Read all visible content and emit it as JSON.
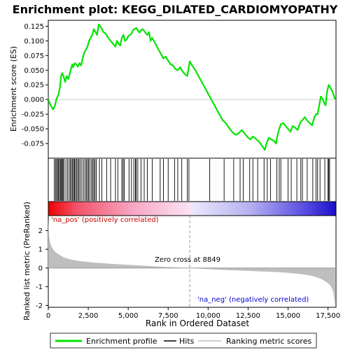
{
  "chart_data": {
    "type": "line",
    "title": "Enrichment plot: KEGG_DILATED_CARDIOMYOPATHY",
    "xlabel": "Rank in Ordered Dataset",
    "colors": {
      "enrichment": "#00e400",
      "hits": "#000000",
      "metric_fill": "#bebebe",
      "zero_line": "#999999",
      "pos_label": "#cc0000",
      "neg_label": "#0000cc"
    },
    "x_ticks": [
      0,
      2500,
      5000,
      7500,
      10000,
      12500,
      15000,
      17500
    ],
    "x_tick_labels": [
      "0",
      "2,500",
      "5,000",
      "7,500",
      "10,000",
      "12,500",
      "15,000",
      "17,500"
    ],
    "xlim": [
      0,
      18000
    ],
    "panels": {
      "es": {
        "ylabel": "Enrichment score (ES)",
        "ylim": [
          -0.1,
          0.135
        ],
        "y_ticks": [
          -0.075,
          -0.05,
          -0.025,
          0.0,
          0.025,
          0.05,
          0.075,
          0.1,
          0.125
        ],
        "y_tick_labels": [
          "-0.075",
          "-0.050",
          "-0.025",
          "0.000",
          "0.025",
          "0.050",
          "0.075",
          "0.100",
          "0.125"
        ]
      },
      "metric": {
        "ylabel": "Ranked list metric (PreRanked)",
        "ylim": [
          -2.1,
          2.8
        ],
        "y_ticks": [
          -2,
          -1,
          0,
          1,
          2
        ],
        "y_tick_labels": [
          "-2",
          "-1",
          "0",
          "1",
          "2"
        ]
      }
    },
    "series": [
      {
        "name": "Enrichment profile",
        "x": [
          0,
          150,
          300,
          420,
          500,
          580,
          650,
          720,
          800,
          870,
          950,
          1050,
          1150,
          1250,
          1350,
          1450,
          1500,
          1560,
          1650,
          1750,
          1850,
          1950,
          2050,
          2150,
          2250,
          2350,
          2450,
          2550,
          2650,
          2750,
          2850,
          2950,
          3050,
          3150,
          3250,
          3350,
          3450,
          3600,
          3750,
          3900,
          4050,
          4200,
          4300,
          4400,
          4500,
          4600,
          4700,
          4800,
          4900,
          5000,
          5100,
          5200,
          5300,
          5400,
          5500,
          5600,
          5700,
          5800,
          5900,
          6000,
          6100,
          6200,
          6300,
          6400,
          6500,
          6600,
          6700,
          6800,
          6900,
          7000,
          7100,
          7200,
          7350,
          7500,
          7650,
          7800,
          7950,
          8100,
          8250,
          8400,
          8550,
          8700,
          8849,
          9000,
          9200,
          9400,
          9600,
          9800,
          10000,
          10100,
          10300,
          10500,
          10700,
          10900,
          11100,
          11300,
          11500,
          11700,
          11900,
          12100,
          12200,
          12350,
          12500,
          12650,
          12800,
          12950,
          13100,
          13250,
          13400,
          13550,
          13650,
          13800,
          13950,
          14100,
          14250,
          14350,
          14450,
          14550,
          14700,
          14850,
          15000,
          15150,
          15300,
          15450,
          15600,
          15750,
          15900,
          16050,
          16200,
          16350,
          16500,
          16650,
          16750,
          16850,
          16950,
          17050,
          17150,
          17250,
          17350,
          17450,
          17550,
          17650,
          17750,
          17850,
          17950
        ],
        "y": [
          0.0,
          -0.01,
          -0.017,
          -0.01,
          0.0,
          0.005,
          0.01,
          0.02,
          0.04,
          0.045,
          0.04,
          0.03,
          0.04,
          0.035,
          0.045,
          0.055,
          0.06,
          0.055,
          0.062,
          0.06,
          0.056,
          0.062,
          0.058,
          0.07,
          0.08,
          0.085,
          0.09,
          0.1,
          0.105,
          0.11,
          0.12,
          0.115,
          0.11,
          0.128,
          0.125,
          0.12,
          0.115,
          0.112,
          0.105,
          0.1,
          0.095,
          0.09,
          0.1,
          0.095,
          0.092,
          0.105,
          0.11,
          0.1,
          0.102,
          0.108,
          0.11,
          0.112,
          0.118,
          0.12,
          0.122,
          0.118,
          0.114,
          0.118,
          0.12,
          0.117,
          0.113,
          0.11,
          0.115,
          0.1,
          0.105,
          0.1,
          0.095,
          0.09,
          0.085,
          0.08,
          0.075,
          0.07,
          0.073,
          0.066,
          0.06,
          0.058,
          0.052,
          0.05,
          0.055,
          0.048,
          0.043,
          0.04,
          0.065,
          0.058,
          0.05,
          0.04,
          0.03,
          0.02,
          0.01,
          0.005,
          -0.005,
          -0.015,
          -0.025,
          -0.035,
          -0.04,
          -0.048,
          -0.055,
          -0.06,
          -0.058,
          -0.052,
          -0.055,
          -0.06,
          -0.065,
          -0.068,
          -0.063,
          -0.066,
          -0.07,
          -0.074,
          -0.08,
          -0.086,
          -0.075,
          -0.065,
          -0.068,
          -0.07,
          -0.075,
          -0.06,
          -0.05,
          -0.042,
          -0.04,
          -0.045,
          -0.05,
          -0.055,
          -0.045,
          -0.048,
          -0.052,
          -0.04,
          -0.035,
          -0.03,
          -0.036,
          -0.04,
          -0.044,
          -0.03,
          -0.025,
          -0.025,
          -0.01,
          0.005,
          0.002,
          -0.005,
          -0.01,
          0.015,
          0.025,
          0.02,
          0.015,
          0.008,
          0.0
        ]
      }
    ],
    "hits": [
      380,
      450,
      520,
      580,
      640,
      700,
      760,
      820,
      870,
      920,
      980,
      1100,
      1200,
      1300,
      1380,
      1450,
      1520,
      1580,
      1640,
      1700,
      1780,
      1850,
      1920,
      2000,
      2100,
      2200,
      2300,
      2380,
      2450,
      2520,
      2600,
      2700,
      2780,
      2850,
      2920,
      3000,
      3200,
      3350,
      3650,
      3900,
      4200,
      4350,
      4600,
      4680,
      4750,
      5050,
      5200,
      5350,
      5450,
      5500,
      5600,
      5800,
      6000,
      6200,
      6500,
      7000,
      7200,
      7500,
      7900,
      8100,
      8350,
      8700,
      8800,
      10100,
      11000,
      11600,
      12000,
      12200,
      12600,
      12800,
      13100,
      13500,
      13700,
      13900,
      14300,
      14450,
      14550,
      15000,
      15200,
      15550,
      15800,
      15900,
      16200,
      16550,
      16750,
      16850,
      17000,
      17300,
      17500,
      17550,
      17600
    ],
    "metric_curve": {
      "x": [
        0,
        50,
        120,
        200,
        300,
        450,
        600,
        800,
        1000,
        1300,
        1600,
        2000,
        2500,
        3000,
        3500,
        4000,
        5000,
        6000,
        7000,
        8000,
        8849,
        9500,
        10500,
        11500,
        12500,
        13500,
        14500,
        15000,
        15500,
        16000,
        16500,
        16800,
        17100,
        17350,
        17550,
        17700,
        17800,
        17850,
        17900,
        17950
      ],
      "y": [
        2.55,
        1.7,
        1.35,
        1.15,
        1.0,
        0.85,
        0.75,
        0.65,
        0.56,
        0.48,
        0.42,
        0.37,
        0.32,
        0.28,
        0.25,
        0.22,
        0.17,
        0.12,
        0.07,
        0.03,
        0.0,
        -0.04,
        -0.08,
        -0.12,
        -0.15,
        -0.19,
        -0.23,
        -0.26,
        -0.3,
        -0.35,
        -0.42,
        -0.5,
        -0.6,
        -0.72,
        -0.85,
        -1.0,
        -1.2,
        -1.4,
        -1.7,
        -1.95
      ]
    },
    "colorbar": {
      "stops": [
        {
          "offset": 0.0,
          "color": "#ee0000"
        },
        {
          "offset": 0.1,
          "color": "#f2546a"
        },
        {
          "offset": 0.3,
          "color": "#f7a9c6"
        },
        {
          "offset": 0.49,
          "color": "#fbe2f2"
        },
        {
          "offset": 0.5,
          "color": "#ebe8fb"
        },
        {
          "offset": 0.7,
          "color": "#b6b1f0"
        },
        {
          "offset": 0.9,
          "color": "#5448e0"
        },
        {
          "offset": 1.0,
          "color": "#1a0fcc"
        }
      ]
    },
    "annotations": {
      "pos_label": "'na_pos' (positively correlated)",
      "neg_label": "'na_neg' (negatively correlated)",
      "zero_cross": "Zero cross at 8849",
      "zero_cross_x": 8849
    },
    "legend": {
      "placement": "bottom",
      "items": [
        {
          "label": "Enrichment profile",
          "color": "#00e400"
        },
        {
          "label": "Hits",
          "color": "#000000"
        },
        {
          "label": "Ranking metric scores",
          "color": "#bebebe"
        }
      ]
    }
  }
}
